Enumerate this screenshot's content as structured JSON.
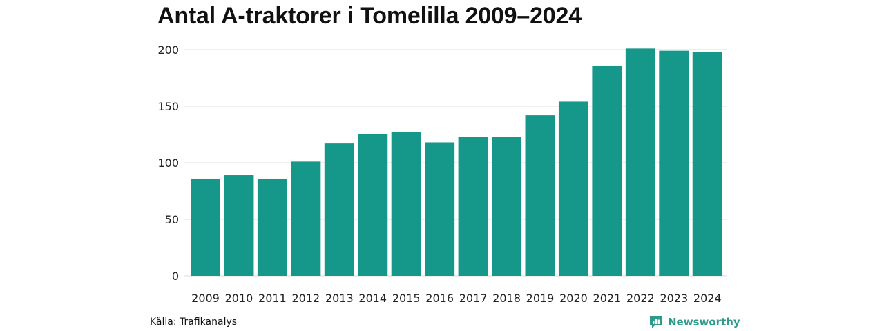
{
  "chart_data": {
    "type": "bar",
    "title": "Antal A-traktorer i Tomelilla 2009–2024",
    "xlabel": "",
    "ylabel": "",
    "categories": [
      "2009",
      "2010",
      "2011",
      "2012",
      "2013",
      "2014",
      "2015",
      "2016",
      "2017",
      "2018",
      "2019",
      "2020",
      "2021",
      "2022",
      "2023",
      "2024"
    ],
    "values": [
      86,
      89,
      86,
      101,
      117,
      125,
      127,
      118,
      123,
      123,
      142,
      154,
      186,
      201,
      199,
      198
    ],
    "ylim": [
      0,
      200
    ],
    "yticks": [
      0,
      50,
      100,
      150,
      200
    ],
    "grid": true,
    "legend": "none",
    "bar_color": "#159789"
  },
  "footer": {
    "source": "Källa: Trafikanalys",
    "brand": "Newsworthy",
    "brand_icon": "newsworthy-logo-icon",
    "brand_color": "#2e9a8a"
  }
}
